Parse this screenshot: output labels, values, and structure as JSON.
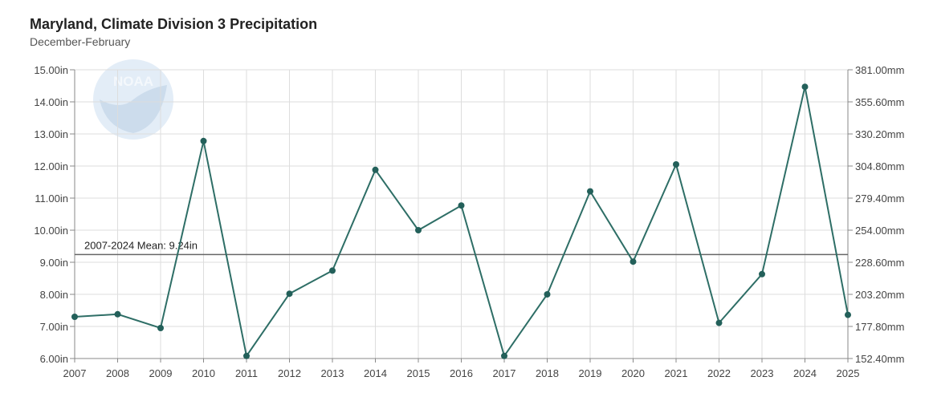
{
  "header": {
    "title": "Maryland, Climate Division 3 Precipitation",
    "subtitle": "December-February"
  },
  "logo": {
    "text": "NOAA"
  },
  "chart_data": {
    "type": "line",
    "title": "Maryland, Climate Division 3 Precipitation",
    "subtitle": "December-February",
    "x": [
      2007,
      2008,
      2009,
      2010,
      2011,
      2012,
      2013,
      2014,
      2015,
      2016,
      2017,
      2018,
      2019,
      2020,
      2021,
      2022,
      2023,
      2024,
      2025
    ],
    "series": [
      {
        "values": [
          7.3,
          7.38,
          6.95,
          12.78,
          6.08,
          8.02,
          8.74,
          11.88,
          10.0,
          10.77,
          6.08,
          8.0,
          11.21,
          9.02,
          12.05,
          7.11,
          8.63,
          14.47,
          7.36
        ]
      }
    ],
    "xlim": [
      2007,
      2025
    ],
    "ylim": [
      6,
      15
    ],
    "y_ticks_left": [
      "15.00in",
      "14.00in",
      "13.00in",
      "12.00in",
      "11.00in",
      "10.00in",
      "9.00in",
      "8.00in",
      "7.00in",
      "6.00in"
    ],
    "y_ticks_right": [
      "381.00mm",
      "355.60mm",
      "330.20mm",
      "304.80mm",
      "279.40mm",
      "254.00mm",
      "228.60mm",
      "203.20mm",
      "177.80mm",
      "152.40mm"
    ],
    "mean": {
      "value": 9.24,
      "label": "2007-2024 Mean: 9.24in"
    },
    "grid": true,
    "colors": {
      "line": "#2e6e66",
      "marker": "#23605a",
      "mean": "#666666"
    }
  }
}
